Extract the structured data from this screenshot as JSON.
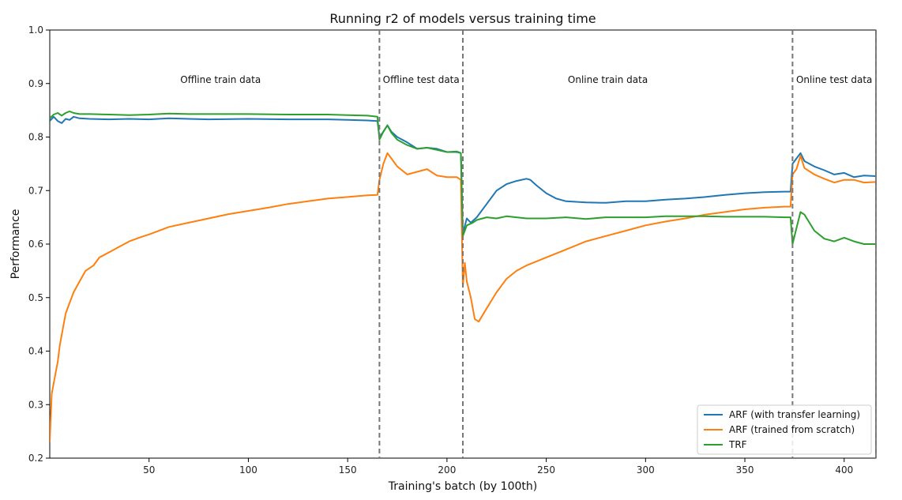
{
  "chart_data": {
    "type": "line",
    "title": "Running r2 of models versus training time",
    "xlabel": "Training's batch (by 100th)",
    "ylabel": "Performance",
    "xlim": [
      0,
      416
    ],
    "ylim": [
      0.2,
      1.0
    ],
    "xticks": [
      50,
      100,
      150,
      200,
      250,
      300,
      350,
      400
    ],
    "yticks": [
      0.2,
      0.3,
      0.4,
      0.5,
      0.6,
      0.7,
      0.8,
      0.9,
      1.0
    ],
    "grid": false,
    "legend_position": "bottom-right",
    "vlines": [
      166,
      208,
      374,
      416
    ],
    "regions": [
      {
        "label": "Offline train data",
        "x": 86
      },
      {
        "label": "Offline test data",
        "x": 187
      },
      {
        "label": "Online train data",
        "x": 281
      },
      {
        "label": "Online test data",
        "x": 395
      }
    ],
    "series": [
      {
        "name": "ARF (with transfer learning)",
        "color": "#1f77b4",
        "points": [
          [
            0,
            0.83
          ],
          [
            2,
            0.838
          ],
          [
            4,
            0.83
          ],
          [
            6,
            0.826
          ],
          [
            8,
            0.834
          ],
          [
            10,
            0.832
          ],
          [
            12,
            0.838
          ],
          [
            15,
            0.835
          ],
          [
            20,
            0.834
          ],
          [
            30,
            0.833
          ],
          [
            40,
            0.834
          ],
          [
            50,
            0.833
          ],
          [
            60,
            0.835
          ],
          [
            70,
            0.834
          ],
          [
            80,
            0.833
          ],
          [
            100,
            0.834
          ],
          [
            120,
            0.833
          ],
          [
            140,
            0.833
          ],
          [
            150,
            0.832
          ],
          [
            160,
            0.831
          ],
          [
            165,
            0.83
          ],
          [
            166,
            0.8
          ],
          [
            168,
            0.81
          ],
          [
            170,
            0.822
          ],
          [
            172,
            0.81
          ],
          [
            175,
            0.8
          ],
          [
            180,
            0.79
          ],
          [
            185,
            0.778
          ],
          [
            190,
            0.78
          ],
          [
            195,
            0.778
          ],
          [
            200,
            0.772
          ],
          [
            205,
            0.772
          ],
          [
            207,
            0.77
          ],
          [
            208,
            0.62
          ],
          [
            210,
            0.648
          ],
          [
            212,
            0.64
          ],
          [
            215,
            0.65
          ],
          [
            220,
            0.675
          ],
          [
            225,
            0.7
          ],
          [
            230,
            0.712
          ],
          [
            235,
            0.718
          ],
          [
            240,
            0.722
          ],
          [
            242,
            0.72
          ],
          [
            245,
            0.71
          ],
          [
            250,
            0.695
          ],
          [
            255,
            0.685
          ],
          [
            260,
            0.68
          ],
          [
            270,
            0.678
          ],
          [
            280,
            0.677
          ],
          [
            290,
            0.68
          ],
          [
            300,
            0.68
          ],
          [
            310,
            0.683
          ],
          [
            320,
            0.685
          ],
          [
            330,
            0.688
          ],
          [
            340,
            0.692
          ],
          [
            350,
            0.695
          ],
          [
            360,
            0.697
          ],
          [
            370,
            0.698
          ],
          [
            373,
            0.698
          ],
          [
            374,
            0.75
          ],
          [
            376,
            0.76
          ],
          [
            378,
            0.77
          ],
          [
            380,
            0.755
          ],
          [
            385,
            0.745
          ],
          [
            390,
            0.738
          ],
          [
            395,
            0.73
          ],
          [
            400,
            0.733
          ],
          [
            405,
            0.725
          ],
          [
            410,
            0.728
          ],
          [
            416,
            0.727
          ]
        ]
      },
      {
        "name": "ARF (trained from scratch)",
        "color": "#ff7f0e",
        "points": [
          [
            0,
            0.23
          ],
          [
            1,
            0.32
          ],
          [
            2,
            0.34
          ],
          [
            3,
            0.36
          ],
          [
            4,
            0.38
          ],
          [
            5,
            0.41
          ],
          [
            6,
            0.43
          ],
          [
            7,
            0.45
          ],
          [
            8,
            0.47
          ],
          [
            10,
            0.49
          ],
          [
            12,
            0.51
          ],
          [
            15,
            0.53
          ],
          [
            18,
            0.55
          ],
          [
            22,
            0.56
          ],
          [
            25,
            0.575
          ],
          [
            30,
            0.585
          ],
          [
            35,
            0.595
          ],
          [
            40,
            0.605
          ],
          [
            45,
            0.612
          ],
          [
            50,
            0.618
          ],
          [
            55,
            0.625
          ],
          [
            60,
            0.632
          ],
          [
            70,
            0.64
          ],
          [
            80,
            0.648
          ],
          [
            90,
            0.656
          ],
          [
            100,
            0.662
          ],
          [
            110,
            0.668
          ],
          [
            120,
            0.675
          ],
          [
            130,
            0.68
          ],
          [
            140,
            0.685
          ],
          [
            150,
            0.688
          ],
          [
            160,
            0.691
          ],
          [
            165,
            0.692
          ],
          [
            166,
            0.72
          ],
          [
            168,
            0.75
          ],
          [
            170,
            0.77
          ],
          [
            172,
            0.76
          ],
          [
            175,
            0.745
          ],
          [
            180,
            0.73
          ],
          [
            185,
            0.735
          ],
          [
            190,
            0.74
          ],
          [
            195,
            0.728
          ],
          [
            200,
            0.725
          ],
          [
            205,
            0.725
          ],
          [
            207,
            0.72
          ],
          [
            208,
            0.52
          ],
          [
            209,
            0.565
          ],
          [
            210,
            0.53
          ],
          [
            212,
            0.5
          ],
          [
            214,
            0.46
          ],
          [
            216,
            0.455
          ],
          [
            220,
            0.48
          ],
          [
            225,
            0.51
          ],
          [
            230,
            0.535
          ],
          [
            235,
            0.55
          ],
          [
            240,
            0.56
          ],
          [
            250,
            0.575
          ],
          [
            260,
            0.59
          ],
          [
            270,
            0.605
          ],
          [
            280,
            0.615
          ],
          [
            290,
            0.625
          ],
          [
            300,
            0.635
          ],
          [
            310,
            0.642
          ],
          [
            320,
            0.648
          ],
          [
            330,
            0.655
          ],
          [
            340,
            0.66
          ],
          [
            350,
            0.665
          ],
          [
            360,
            0.668
          ],
          [
            370,
            0.67
          ],
          [
            373,
            0.67
          ],
          [
            374,
            0.73
          ],
          [
            376,
            0.74
          ],
          [
            378,
            0.765
          ],
          [
            380,
            0.742
          ],
          [
            385,
            0.73
          ],
          [
            390,
            0.722
          ],
          [
            395,
            0.715
          ],
          [
            400,
            0.72
          ],
          [
            405,
            0.72
          ],
          [
            410,
            0.715
          ],
          [
            416,
            0.716
          ]
        ]
      },
      {
        "name": "TRF",
        "color": "#2ca02c",
        "points": [
          [
            0,
            0.835
          ],
          [
            2,
            0.842
          ],
          [
            4,
            0.845
          ],
          [
            6,
            0.84
          ],
          [
            8,
            0.845
          ],
          [
            10,
            0.848
          ],
          [
            12,
            0.845
          ],
          [
            15,
            0.843
          ],
          [
            20,
            0.843
          ],
          [
            30,
            0.842
          ],
          [
            40,
            0.841
          ],
          [
            50,
            0.842
          ],
          [
            60,
            0.844
          ],
          [
            70,
            0.843
          ],
          [
            80,
            0.843
          ],
          [
            100,
            0.843
          ],
          [
            120,
            0.842
          ],
          [
            140,
            0.842
          ],
          [
            150,
            0.841
          ],
          [
            160,
            0.84
          ],
          [
            165,
            0.838
          ],
          [
            166,
            0.795
          ],
          [
            168,
            0.81
          ],
          [
            170,
            0.822
          ],
          [
            172,
            0.808
          ],
          [
            175,
            0.795
          ],
          [
            180,
            0.785
          ],
          [
            185,
            0.778
          ],
          [
            190,
            0.78
          ],
          [
            195,
            0.776
          ],
          [
            200,
            0.772
          ],
          [
            205,
            0.773
          ],
          [
            207,
            0.77
          ],
          [
            208,
            0.615
          ],
          [
            210,
            0.635
          ],
          [
            213,
            0.64
          ],
          [
            215,
            0.645
          ],
          [
            220,
            0.65
          ],
          [
            225,
            0.648
          ],
          [
            230,
            0.652
          ],
          [
            240,
            0.648
          ],
          [
            250,
            0.648
          ],
          [
            260,
            0.65
          ],
          [
            270,
            0.647
          ],
          [
            280,
            0.65
          ],
          [
            290,
            0.65
          ],
          [
            300,
            0.65
          ],
          [
            310,
            0.652
          ],
          [
            320,
            0.652
          ],
          [
            330,
            0.652
          ],
          [
            340,
            0.651
          ],
          [
            350,
            0.651
          ],
          [
            360,
            0.651
          ],
          [
            370,
            0.65
          ],
          [
            373,
            0.65
          ],
          [
            374,
            0.6
          ],
          [
            376,
            0.63
          ],
          [
            378,
            0.66
          ],
          [
            380,
            0.655
          ],
          [
            385,
            0.625
          ],
          [
            390,
            0.61
          ],
          [
            395,
            0.605
          ],
          [
            400,
            0.612
          ],
          [
            405,
            0.605
          ],
          [
            410,
            0.6
          ],
          [
            416,
            0.6
          ]
        ]
      }
    ]
  }
}
